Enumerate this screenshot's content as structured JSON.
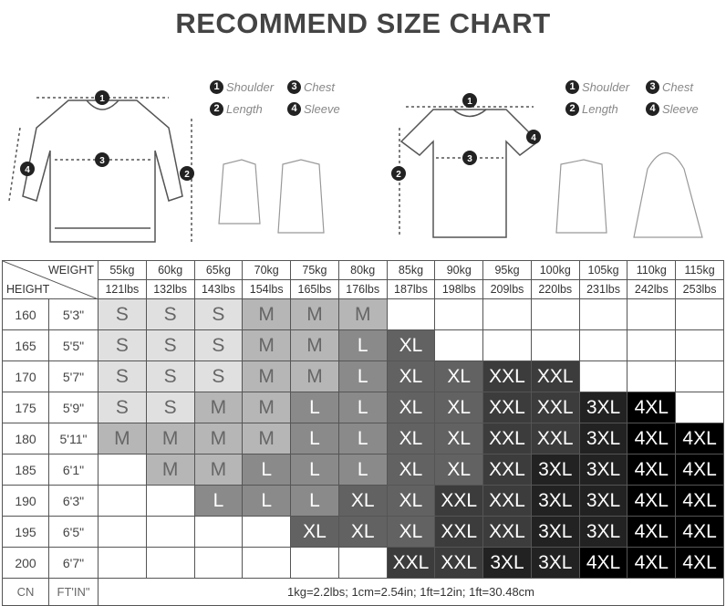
{
  "title": "RECOMMEND SIZE CHART",
  "legend": [
    {
      "n": "1",
      "label": "Shoulder"
    },
    {
      "n": "3",
      "label": "Chest"
    },
    {
      "n": "2",
      "label": "Length"
    },
    {
      "n": "4",
      "label": "Sleeve"
    }
  ],
  "header": {
    "weight": "WEIGHT",
    "height": "HEIGHT",
    "kg": [
      "55kg",
      "60kg",
      "65kg",
      "70kg",
      "75kg",
      "80kg",
      "85kg",
      "90kg",
      "95kg",
      "100kg",
      "105kg",
      "110kg",
      "115kg"
    ],
    "lbs": [
      "121lbs",
      "132lbs",
      "143lbs",
      "154lbs",
      "165lbs",
      "176lbs",
      "187lbs",
      "198lbs",
      "209lbs",
      "220lbs",
      "231lbs",
      "242lbs",
      "253lbs"
    ]
  },
  "rows": [
    {
      "cm": "160",
      "ft": "5'3\"",
      "sizes": [
        "S",
        "S",
        "S",
        "M",
        "M",
        "M",
        "",
        "",
        "",
        "",
        "",
        "",
        ""
      ]
    },
    {
      "cm": "165",
      "ft": "5'5\"",
      "sizes": [
        "S",
        "S",
        "S",
        "M",
        "M",
        "L",
        "XL",
        "",
        "",
        "",
        "",
        "",
        ""
      ]
    },
    {
      "cm": "170",
      "ft": "5'7\"",
      "sizes": [
        "S",
        "S",
        "S",
        "M",
        "M",
        "L",
        "XL",
        "XL",
        "XXL",
        "XXL",
        "",
        "",
        ""
      ]
    },
    {
      "cm": "175",
      "ft": "5'9\"",
      "sizes": [
        "S",
        "S",
        "M",
        "M",
        "L",
        "L",
        "XL",
        "XL",
        "XXL",
        "XXL",
        "3XL",
        "4XL",
        ""
      ]
    },
    {
      "cm": "180",
      "ft": "5'11\"",
      "sizes": [
        "M",
        "M",
        "M",
        "M",
        "L",
        "L",
        "XL",
        "XL",
        "XXL",
        "XXL",
        "3XL",
        "4XL",
        "4XL"
      ]
    },
    {
      "cm": "185",
      "ft": "6'1\"",
      "sizes": [
        "",
        "M",
        "M",
        "L",
        "L",
        "L",
        "XL",
        "XL",
        "XXL",
        "3XL",
        "3XL",
        "4XL",
        "4XL"
      ]
    },
    {
      "cm": "190",
      "ft": "6'3\"",
      "sizes": [
        "",
        "",
        "L",
        "L",
        "L",
        "XL",
        "XL",
        "XXL",
        "XXL",
        "3XL",
        "3XL",
        "4XL",
        "4XL"
      ]
    },
    {
      "cm": "195",
      "ft": "6'5\"",
      "sizes": [
        "",
        "",
        "",
        "",
        "XL",
        "XL",
        "XL",
        "XXL",
        "XXL",
        "3XL",
        "3XL",
        "4XL",
        "4XL"
      ]
    },
    {
      "cm": "200",
      "ft": "6'7\"",
      "sizes": [
        "",
        "",
        "",
        "",
        "",
        "",
        "XXL",
        "XXL",
        "3XL",
        "3XL",
        "4XL",
        "4XL",
        "4XL"
      ]
    }
  ],
  "footer": {
    "cn": "CN",
    "ftin": "FT'IN\"",
    "note": "1kg=2.2lbs; 1cm=2.54in; 1ft=12in; 1ft=30.48cm"
  },
  "size_colors": {
    "S": "#e0e0e0",
    "M": "#b6b6b6",
    "L": "#8a8a8a",
    "XL": "#626262",
    "XXL": "#3c3c3c",
    "3XL": "#222222",
    "4XL": "#000000"
  }
}
